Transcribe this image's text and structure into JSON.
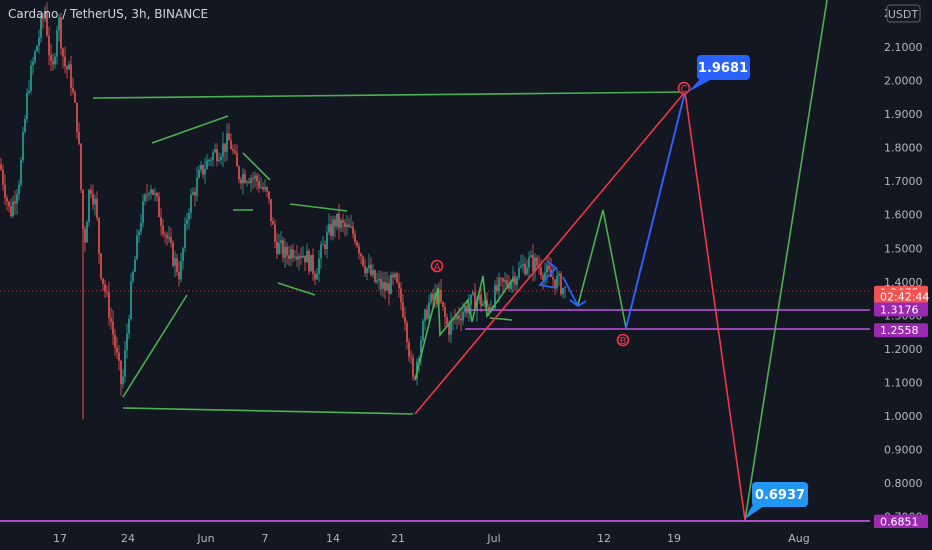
{
  "header": {
    "title": "Cardano / TetherUS, 3h, BINANCE",
    "currency_badge": "USDT",
    "top_price": "2"
  },
  "colors": {
    "background": "#131722",
    "up_candle": "#26a69a",
    "down_candle": "#ef5350",
    "green_line": "#4caf50",
    "blue_line": "#2962ff",
    "red_line": "#f23645",
    "purple_line": "#c254e6",
    "axis_text": "#b2b5be"
  },
  "chart_data": {
    "type": "candlestick",
    "title": "Cardano / TetherUS, 3h, BINANCE",
    "y_axis": {
      "position": "right",
      "range": [
        0.68,
        2.21
      ],
      "ticks": [
        "2.1000",
        "2.0000",
        "1.9000",
        "1.8000",
        "1.7000",
        "1.6000",
        "1.5000",
        "1.4000",
        "1.3000",
        "1.2000",
        "1.1000",
        "1.0000",
        "0.9000",
        "0.8000",
        "0.7000"
      ]
    },
    "x_axis": {
      "ticks": [
        "17",
        "24",
        "Jun",
        "7",
        "14",
        "21",
        "Jul",
        "12",
        "19",
        "Aug"
      ]
    },
    "price_tags": [
      {
        "label": "1.3675",
        "value": 1.3675,
        "color": "#ef5350"
      },
      {
        "label": "02:42:44",
        "value": 1.3555,
        "color": "#ef5350"
      },
      {
        "label": "1.3176",
        "value": 1.3176,
        "color": "#9c27b0"
      },
      {
        "label": "1.2558",
        "value": 1.2558,
        "color": "#9c27b0"
      },
      {
        "label": "0.6851",
        "value": 0.6851,
        "color": "#9c27b0"
      }
    ],
    "callouts": [
      {
        "label": "1.9681",
        "value": 1.9681,
        "color": "#2962ff"
      },
      {
        "label": "0.6937",
        "value": 0.6937,
        "color": "#2196f3"
      }
    ],
    "wave_labels": [
      "A",
      "B",
      "C"
    ],
    "horizontal_levels": [
      1.3176,
      1.2558,
      0.6851
    ]
  }
}
